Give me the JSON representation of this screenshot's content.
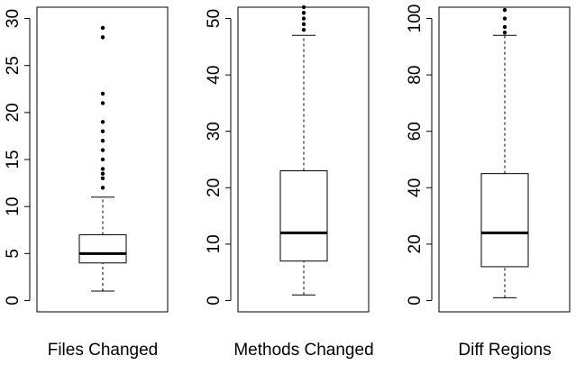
{
  "chart_data": [
    {
      "type": "box",
      "xlabel": "Files Changed",
      "ylim": [
        -1.2,
        31.2
      ],
      "yticks": [
        0,
        5,
        10,
        15,
        20,
        25,
        30
      ],
      "whisker_low": 1,
      "q1": 4,
      "median": 5,
      "q3": 7,
      "whisker_high": 11,
      "outliers": [
        12,
        13,
        13.5,
        14,
        15,
        16,
        17,
        18,
        19,
        21,
        22,
        28,
        29
      ]
    },
    {
      "type": "box",
      "xlabel": "Methods Changed",
      "ylim": [
        -2,
        52
      ],
      "yticks": [
        0,
        10,
        20,
        30,
        40,
        50
      ],
      "whisker_low": 1,
      "q1": 7,
      "median": 12,
      "q3": 23,
      "whisker_high": 47,
      "outliers": [
        48,
        49,
        50,
        51,
        52
      ]
    },
    {
      "type": "box",
      "xlabel": "Diff Regions",
      "ylim": [
        -4,
        104
      ],
      "yticks": [
        0,
        20,
        40,
        60,
        80,
        100
      ],
      "whisker_low": 1,
      "q1": 12,
      "median": 24,
      "q3": 45,
      "whisker_high": 94,
      "outliers": [
        95,
        97,
        100,
        103
      ]
    }
  ]
}
